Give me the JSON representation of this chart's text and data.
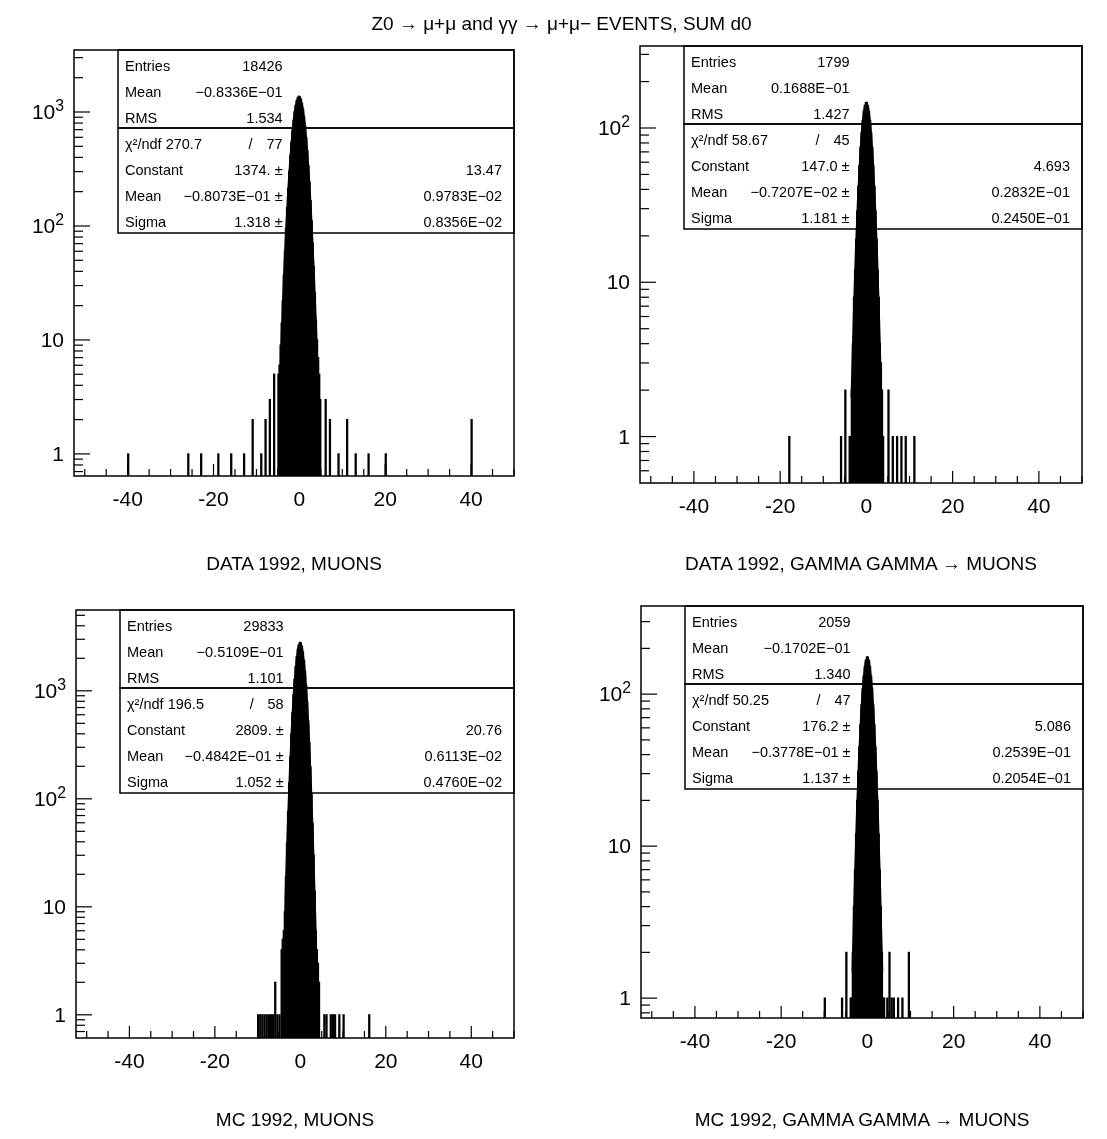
{
  "chart_data": [
    {
      "type": "histogram",
      "title": "Z0 → μ+μ and γγ → μ+μ− EVENTS, SUM d0",
      "xlabel": "DATA 1992, MUONS",
      "log": true,
      "color": "#000000",
      "xlim": [
        -52.5,
        50
      ],
      "ylim": [
        0.64,
        3500
      ],
      "xticks": [
        {
          "value": -50,
          "label": null
        },
        {
          "value": -45,
          "label": null
        },
        -40,
        {
          "value": -35,
          "label": null
        },
        {
          "value": -30,
          "label": null
        },
        {
          "value": -25,
          "label": null
        },
        -20,
        {
          "value": -15,
          "label": null
        },
        {
          "value": -10,
          "label": null
        },
        {
          "value": -5,
          "label": null
        },
        0,
        {
          "value": 5,
          "label": null
        },
        {
          "value": 10,
          "label": null
        },
        {
          "value": 15,
          "label": null
        },
        20,
        {
          "value": 25,
          "label": null
        },
        {
          "value": 30,
          "label": null
        },
        {
          "value": 35,
          "label": null
        },
        40,
        {
          "value": 45,
          "label": null
        },
        {
          "value": 50,
          "label": null
        }
      ],
      "yticks": [
        {
          "value": 0.7,
          "label": null
        },
        {
          "value": 0.8,
          "label": null
        },
        {
          "value": 0.9,
          "label": null
        },
        {
          "value": 1,
          "label": "1"
        },
        {
          "value": 2,
          "label": null
        },
        {
          "value": 3,
          "label": null
        },
        {
          "value": 4,
          "label": null
        },
        {
          "value": 5,
          "label": null
        },
        {
          "value": 6,
          "label": null
        },
        {
          "value": 7,
          "label": null
        },
        {
          "value": 8,
          "label": null
        },
        {
          "value": 9,
          "label": null
        },
        {
          "value": 10,
          "label": "10"
        },
        {
          "value": 20,
          "label": null
        },
        {
          "value": 30,
          "label": null
        },
        {
          "value": 40,
          "label": null
        },
        {
          "value": 50,
          "label": null
        },
        {
          "value": 60,
          "label": null
        },
        {
          "value": 70,
          "label": null
        },
        {
          "value": 80,
          "label": null
        },
        {
          "value": 90,
          "label": null
        },
        {
          "value": 100,
          "label": "10$^{2}$"
        },
        {
          "value": 200,
          "label": null
        },
        {
          "value": 300,
          "label": null
        },
        {
          "value": 400,
          "label": null
        },
        {
          "value": 500,
          "label": null
        },
        {
          "value": 600,
          "label": null
        },
        {
          "value": 700,
          "label": null
        },
        {
          "value": 800,
          "label": null
        },
        {
          "value": 900,
          "label": null
        },
        {
          "value": 1000,
          "label": "10$^{3}$"
        },
        {
          "value": 2000,
          "label": null
        },
        {
          "value": 3000,
          "label": null
        }
      ],
      "bins": [
        -40,
        -39.75,
        -26,
        -25.75,
        -23,
        -22.75,
        -19,
        -18.75,
        -16,
        -15.75,
        -13,
        -12.75,
        -11,
        -10.75,
        -9,
        -8.75,
        -8,
        -7.75,
        -7,
        -6.75,
        -6,
        -5.75,
        -5,
        -4.75,
        -4.5,
        -4.25,
        -4,
        -3.75,
        -3.5,
        -3.25,
        -3,
        -2.75,
        -2.5,
        -2.25,
        -2,
        -1.75,
        -1.5,
        -1.25,
        -1,
        -0.75,
        -0.5,
        -0.25,
        0,
        0.25,
        0.5,
        0.75,
        1,
        1.25,
        1.5,
        1.75,
        2,
        2.25,
        2.5,
        2.75,
        3,
        3.25,
        3.5,
        3.75,
        4,
        4.25,
        4.5,
        4.75,
        5,
        6,
        6.25,
        7,
        7.25,
        9,
        9.25,
        11,
        11.25,
        13,
        13.25,
        16,
        16.25,
        20,
        20.25,
        40,
        40.25
      ],
      "values": [
        1,
        null,
        1,
        null,
        1,
        null,
        1,
        null,
        1,
        null,
        1,
        null,
        2,
        null,
        1,
        null,
        2,
        null,
        3,
        null,
        5,
        null,
        5,
        6,
        9,
        14,
        22,
        37,
        60,
        95,
        145,
        213,
        302,
        412,
        544,
        691,
        848,
        1003,
        1145,
        1262,
        1340,
        1373,
        1357,
        1295,
        1191,
        1057,
        905,
        747,
        595,
        457,
        339,
        242,
        167,
        111,
        71,
        44,
        26,
        15,
        10,
        7,
        5,
        3,
        null,
        3,
        null,
        2,
        null,
        1,
        null,
        2,
        null,
        1,
        null,
        1,
        null,
        1,
        null,
        2
      ],
      "series": [
        {
          "type": "line",
          "color": "#000000",
          "x": [
            -4.625,
            -4.125,
            -3.625,
            -3.125,
            -2.625,
            -2.125,
            -1.625,
            -1.125,
            -0.625,
            -0.125,
            0.375,
            0.875,
            1.375,
            1.875,
            2.375,
            2.875,
            3.375,
            3.875,
            4.375,
            4.875
          ],
          "values": [
            3.6,
            12,
            37,
            95,
            213,
            412,
            691,
            1003,
            1262,
            1373,
            1295,
            1057,
            747,
            457,
            242,
            111,
            44,
            15,
            4.5,
            1.2
          ]
        }
      ],
      "annotations": [
        "Entries",
        "18426",
        "Mean",
        "−0.8336E−01",
        "RMS",
        "1.534",
        "χ²/ndf 270.7",
        "/",
        "77",
        "Constant",
        "1374. ±",
        "13.47",
        "Mean",
        "−0.8073E−01 ±",
        "0.9783E−02",
        "Sigma",
        "1.318 ±",
        "0.8356E−02"
      ]
    },
    {
      "type": "histogram",
      "xlabel": "DATA 1992, GAMMA GAMMA → MUONS",
      "log": true,
      "color": "#000000",
      "xlim": [
        -52.5,
        50
      ],
      "ylim": [
        0.5,
        340
      ],
      "xticks": [
        {
          "value": -50,
          "label": null
        },
        {
          "value": -45,
          "label": null
        },
        -40,
        {
          "value": -35,
          "label": null
        },
        {
          "value": -30,
          "label": null
        },
        {
          "value": -25,
          "label": null
        },
        -20,
        {
          "value": -15,
          "label": null
        },
        {
          "value": -10,
          "label": null
        },
        {
          "value": -5,
          "label": null
        },
        0,
        {
          "value": 5,
          "label": null
        },
        {
          "value": 10,
          "label": null
        },
        {
          "value": 15,
          "label": null
        },
        20,
        {
          "value": 25,
          "label": null
        },
        {
          "value": 30,
          "label": null
        },
        {
          "value": 35,
          "label": null
        },
        40,
        {
          "value": 45,
          "label": null
        },
        {
          "value": 50,
          "label": null
        }
      ],
      "yticks": [
        {
          "value": 0.6,
          "label": null
        },
        {
          "value": 0.7,
          "label": null
        },
        {
          "value": 0.8,
          "label": null
        },
        {
          "value": 0.9,
          "label": null
        },
        {
          "value": 1,
          "label": "1"
        },
        {
          "value": 2,
          "label": null
        },
        {
          "value": 3,
          "label": null
        },
        {
          "value": 4,
          "label": null
        },
        {
          "value": 5,
          "label": null
        },
        {
          "value": 6,
          "label": null
        },
        {
          "value": 7,
          "label": null
        },
        {
          "value": 8,
          "label": null
        },
        {
          "value": 9,
          "label": null
        },
        {
          "value": 10,
          "label": "10"
        },
        {
          "value": 20,
          "label": null
        },
        {
          "value": 30,
          "label": null
        },
        {
          "value": 40,
          "label": null
        },
        {
          "value": 50,
          "label": null
        },
        {
          "value": 60,
          "label": null
        },
        {
          "value": 70,
          "label": null
        },
        {
          "value": 80,
          "label": null
        },
        {
          "value": 90,
          "label": null
        },
        {
          "value": 100,
          "label": "10$^{2}$"
        },
        {
          "value": 200,
          "label": null
        },
        {
          "value": 300,
          "label": null
        }
      ],
      "bins": [
        -18,
        -17.75,
        -6,
        -5.75,
        -5,
        -4.75,
        -4,
        -3.75,
        -3.5,
        -3.25,
        -3,
        -2.75,
        -2.5,
        -2.25,
        -2,
        -1.75,
        -1.5,
        -1.25,
        -1,
        -0.75,
        -0.5,
        -0.25,
        0,
        0.25,
        0.5,
        0.75,
        1,
        1.25,
        1.5,
        1.75,
        2,
        2.25,
        2.5,
        2.75,
        3,
        3.25,
        3.5,
        3.75,
        4,
        5,
        5.25,
        6,
        6.25,
        7,
        7.25,
        8,
        8.25,
        9,
        9.25,
        11,
        11.25
      ],
      "values": [
        1,
        null,
        1,
        null,
        2,
        null,
        1,
        1,
        2,
        4,
        8,
        12,
        19,
        29,
        42,
        57,
        75,
        93,
        112,
        128,
        140,
        146,
        146,
        140,
        128,
        112,
        93,
        75,
        57,
        42,
        29,
        19,
        12,
        8,
        4,
        3,
        2,
        1,
        null,
        2,
        null,
        1,
        null,
        1,
        null,
        1,
        null,
        1,
        null,
        1
      ],
      "series": [
        {
          "type": "line",
          "color": "#000000",
          "x": [
            -3.5,
            -3,
            -2.5,
            -2,
            -1.5,
            -1,
            -0.5,
            0,
            0.5,
            1,
            1.5,
            2,
            2.5,
            3,
            3.5
          ],
          "values": [
            1.8,
            5.8,
            16,
            35,
            66,
            103,
            134,
            147,
            134,
            103,
            66,
            35,
            16,
            5.8,
            1.8
          ]
        }
      ],
      "annotations": [
        "Entries",
        "1799",
        "Mean",
        "0.1688E−01",
        "RMS",
        "1.427",
        "χ²/ndf 58.67",
        "/",
        "45",
        "Constant",
        "147.0 ±",
        "4.693",
        "Mean",
        "−0.7207E−02 ±",
        "0.2832E−01",
        "Sigma",
        "1.181 ±",
        "0.2450E−01"
      ]
    },
    {
      "type": "histogram",
      "xlabel": "MC 1992, MUONS",
      "log": true,
      "color": "#000000",
      "xlim": [
        -52.5,
        50
      ],
      "ylim": [
        0.61,
        5600
      ],
      "xticks": [
        {
          "value": -50,
          "label": null
        },
        {
          "value": -45,
          "label": null
        },
        -40,
        {
          "value": -35,
          "label": null
        },
        {
          "value": -30,
          "label": null
        },
        {
          "value": -25,
          "label": null
        },
        -20,
        {
          "value": -15,
          "label": null
        },
        {
          "value": -10,
          "label": null
        },
        {
          "value": -5,
          "label": null
        },
        0,
        {
          "value": 5,
          "label": null
        },
        {
          "value": 10,
          "label": null
        },
        {
          "value": 15,
          "label": null
        },
        20,
        {
          "value": 25,
          "label": null
        },
        {
          "value": 30,
          "label": null
        },
        {
          "value": 35,
          "label": null
        },
        40,
        {
          "value": 45,
          "label": null
        },
        {
          "value": 50,
          "label": null
        }
      ],
      "yticks": [
        {
          "value": 0.7,
          "label": null
        },
        {
          "value": 0.8,
          "label": null
        },
        {
          "value": 0.9,
          "label": null
        },
        {
          "value": 1,
          "label": "1"
        },
        {
          "value": 2,
          "label": null
        },
        {
          "value": 3,
          "label": null
        },
        {
          "value": 4,
          "label": null
        },
        {
          "value": 5,
          "label": null
        },
        {
          "value": 6,
          "label": null
        },
        {
          "value": 7,
          "label": null
        },
        {
          "value": 8,
          "label": null
        },
        {
          "value": 9,
          "label": null
        },
        {
          "value": 10,
          "label": "10"
        },
        {
          "value": 20,
          "label": null
        },
        {
          "value": 30,
          "label": null
        },
        {
          "value": 40,
          "label": null
        },
        {
          "value": 50,
          "label": null
        },
        {
          "value": 60,
          "label": null
        },
        {
          "value": 70,
          "label": null
        },
        {
          "value": 80,
          "label": null
        },
        {
          "value": 90,
          "label": null
        },
        {
          "value": 100,
          "label": "10$^{2}$"
        },
        {
          "value": 200,
          "label": null
        },
        {
          "value": 300,
          "label": null
        },
        {
          "value": 400,
          "label": null
        },
        {
          "value": 500,
          "label": null
        },
        {
          "value": 600,
          "label": null
        },
        {
          "value": 700,
          "label": null
        },
        {
          "value": 800,
          "label": null
        },
        {
          "value": 900,
          "label": null
        },
        {
          "value": 1000,
          "label": "10$^{3}$"
        },
        {
          "value": 2000,
          "label": null
        },
        {
          "value": 3000,
          "label": null
        },
        {
          "value": 4000,
          "label": null
        },
        {
          "value": 5000,
          "label": null
        }
      ],
      "bins": [
        -10,
        -9.75,
        -9.5,
        -9.25,
        -9,
        -8.75,
        -8.5,
        -8.25,
        -8,
        -7.75,
        -7.5,
        -7.25,
        -7,
        -6.75,
        -6.5,
        -6.25,
        -6,
        -5.75,
        -5.5,
        -5.25,
        -5,
        -4.75,
        -4.5,
        -4.25,
        -4,
        -3.75,
        -3.5,
        -3.25,
        -3,
        -2.75,
        -2.5,
        -2.25,
        -2,
        -1.75,
        -1.5,
        -1.25,
        -1,
        -0.75,
        -0.5,
        -0.25,
        0,
        0.25,
        0.5,
        0.75,
        1,
        1.25,
        1.5,
        1.75,
        2,
        2.25,
        2.5,
        2.75,
        3,
        3.25,
        3.5,
        3.75,
        4,
        4.25,
        4.5,
        5.5,
        5.75,
        6,
        6.25,
        7,
        7.25,
        7.5,
        7.75,
        8,
        8.25,
        9,
        9.25,
        10,
        10.25,
        16,
        16.25
      ],
      "values": [
        1,
        null,
        1,
        null,
        1,
        null,
        1,
        null,
        1,
        null,
        1,
        null,
        1,
        null,
        1,
        null,
        2,
        null,
        1,
        null,
        1,
        null,
        4,
        5,
        6,
        9,
        19,
        39,
        76,
        140,
        244,
        401,
        624,
        916,
        1273,
        1666,
        2065,
        2419,
        2677,
        2802,
        2770,
        2590,
        2286,
        1908,
        1505,
        1121,
        790,
        526,
        331,
        197,
        111,
        59,
        30,
        14,
        6,
        4,
        3,
        2,
        null,
        1,
        null,
        1,
        null,
        1,
        null,
        1,
        null,
        1,
        null,
        1,
        null,
        1,
        null,
        1
      ],
      "series": [
        {
          "type": "line",
          "color": "#000000",
          "x": [
            -4,
            -3.5,
            -3,
            -2.5,
            -2,
            -1.5,
            -1,
            -0.5,
            0,
            0.5,
            1,
            1.5,
            2,
            2.5,
            3,
            3.5,
            4
          ],
          "values": [
            1.7,
            13,
            55,
            186,
            505,
            1088,
            1786,
            2562,
            2806,
            2449,
            1709,
            950,
            420,
            149,
            42,
            9.5,
            1.7
          ]
        }
      ],
      "annotations": [
        "Entries",
        "29833",
        "Mean",
        "−0.5109E−01",
        "RMS",
        "1.101",
        "χ²/ndf 196.5",
        "/",
        "58",
        "Constant",
        "2809. ±",
        "20.76",
        "Mean",
        "−0.4842E−01 ±",
        "0.6113E−02",
        "Sigma",
        "1.052 ±",
        "0.4760E−02"
      ]
    },
    {
      "type": "histogram",
      "xlabel": "MC 1992, GAMMA GAMMA → MUONS",
      "log": true,
      "color": "#000000",
      "xlim": [
        -52.5,
        50
      ],
      "ylim": [
        0.74,
        380
      ],
      "xticks": [
        {
          "value": -50,
          "label": null
        },
        {
          "value": -45,
          "label": null
        },
        -40,
        {
          "value": -35,
          "label": null
        },
        {
          "value": -30,
          "label": null
        },
        {
          "value": -25,
          "label": null
        },
        -20,
        {
          "value": -15,
          "label": null
        },
        {
          "value": -10,
          "label": null
        },
        {
          "value": -5,
          "label": null
        },
        0,
        {
          "value": 5,
          "label": null
        },
        {
          "value": 10,
          "label": null
        },
        {
          "value": 15,
          "label": null
        },
        20,
        {
          "value": 25,
          "label": null
        },
        {
          "value": 30,
          "label": null
        },
        {
          "value": 35,
          "label": null
        },
        40,
        {
          "value": 45,
          "label": null
        },
        {
          "value": 50,
          "label": null
        }
      ],
      "yticks": [
        {
          "value": 0.8,
          "label": null
        },
        {
          "value": 0.9,
          "label": null
        },
        {
          "value": 1,
          "label": "1"
        },
        {
          "value": 2,
          "label": null
        },
        {
          "value": 3,
          "label": null
        },
        {
          "value": 4,
          "label": null
        },
        {
          "value": 5,
          "label": null
        },
        {
          "value": 6,
          "label": null
        },
        {
          "value": 7,
          "label": null
        },
        {
          "value": 8,
          "label": null
        },
        {
          "value": 9,
          "label": null
        },
        {
          "value": 10,
          "label": "10"
        },
        {
          "value": 20,
          "label": null
        },
        {
          "value": 30,
          "label": null
        },
        {
          "value": 40,
          "label": null
        },
        {
          "value": 50,
          "label": null
        },
        {
          "value": 60,
          "label": null
        },
        {
          "value": 70,
          "label": null
        },
        {
          "value": 80,
          "label": null
        },
        {
          "value": 90,
          "label": null
        },
        {
          "value": 100,
          "label": "10$^{2}$"
        },
        {
          "value": 200,
          "label": null
        },
        {
          "value": 300,
          "label": null
        }
      ],
      "bins": [
        -10,
        -9.75,
        -6,
        -5.75,
        -5,
        -4.75,
        -4,
        -3.75,
        -3.5,
        -3.25,
        -3,
        -2.75,
        -2.5,
        -2.25,
        -2,
        -1.75,
        -1.5,
        -1.25,
        -1,
        -0.75,
        -0.5,
        -0.25,
        0,
        0.25,
        0.5,
        0.75,
        1,
        1.25,
        1.5,
        1.75,
        2,
        2.25,
        2.5,
        2.75,
        3,
        3.25,
        3.5,
        3.75,
        4,
        4.5,
        4.75,
        5,
        5.25,
        5.5,
        5.75,
        6,
        6.25,
        7,
        7.25,
        8,
        8.25,
        9.5,
        9.75
      ],
      "values": [
        1,
        null,
        1,
        null,
        2,
        null,
        1,
        1,
        2,
        4,
        7,
        12,
        20,
        31,
        45,
        63,
        85,
        108,
        131,
        151,
        167,
        175,
        175,
        167,
        151,
        131,
        108,
        85,
        63,
        45,
        31,
        20,
        12,
        7,
        4,
        2,
        1,
        1,
        null,
        1,
        null,
        2,
        null,
        1,
        null,
        1,
        null,
        1,
        null,
        1,
        null,
        2
      ],
      "series": [
        {
          "type": "line",
          "color": "#000000",
          "x": [
            -3.5,
            -3,
            -2.5,
            -2,
            -1.5,
            -1,
            -0.5,
            0,
            0.5,
            1,
            1.5,
            2,
            2.5,
            3,
            3.5
          ],
          "values": [
            1.5,
            5.4,
            16,
            38,
            74,
            120,
            160,
            176,
            160,
            120,
            74,
            38,
            16,
            5.4,
            1.5
          ]
        }
      ],
      "annotations": [
        "Entries",
        "2059",
        "Mean",
        "−0.1702E−01",
        "RMS",
        "1.340",
        "χ²/ndf 50.25",
        "/",
        "47",
        "Constant",
        "176.2 ±",
        "5.086",
        "Mean",
        "−0.3778E−01 ±",
        "0.2539E−01",
        "Sigma",
        "1.137 ±",
        "0.2054E−01"
      ]
    }
  ]
}
